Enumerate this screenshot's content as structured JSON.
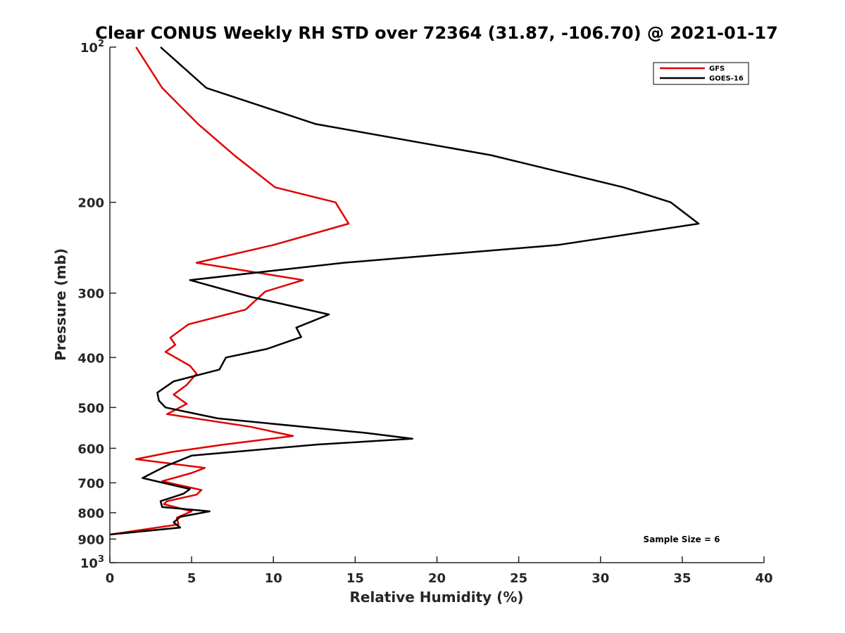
{
  "chart_data": {
    "type": "line",
    "title": "Clear CONUS Weekly RH STD over 72364 (31.87, -106.70) @ 2021-01-17",
    "xlabel": "Relative Humidity (%)",
    "ylabel": "Pressure (mb)",
    "xlim": [
      0,
      40
    ],
    "ylim": [
      100,
      1000
    ],
    "y_scale": "log",
    "y_reversed": true,
    "x_ticks": [
      0,
      5,
      10,
      15,
      20,
      25,
      30,
      35,
      40
    ],
    "x_tick_labels": [
      "0",
      "5",
      "10",
      "15",
      "20",
      "25",
      "30",
      "35",
      "40"
    ],
    "y_ticks": [
      100,
      200,
      300,
      400,
      500,
      600,
      700,
      800,
      900,
      1000
    ],
    "y_tick_labels": [
      {
        "base": "10",
        "exp": "2"
      },
      {
        "base": "200",
        "exp": ""
      },
      {
        "base": "300",
        "exp": ""
      },
      {
        "base": "400",
        "exp": ""
      },
      {
        "base": "500",
        "exp": ""
      },
      {
        "base": "600",
        "exp": ""
      },
      {
        "base": "700",
        "exp": ""
      },
      {
        "base": "800",
        "exp": ""
      },
      {
        "base": "900",
        "exp": ""
      },
      {
        "base": "10",
        "exp": "3"
      }
    ],
    "grid": false,
    "legend_position": "top-right",
    "annotation": "Sample Size = 6",
    "series": [
      {
        "name": "GFS",
        "color": "#e00000",
        "points": [
          [
            1.6,
            100
          ],
          [
            3.2,
            120
          ],
          [
            5.4,
            141
          ],
          [
            7.6,
            162
          ],
          [
            10.1,
            187
          ],
          [
            13.8,
            200
          ],
          [
            14.6,
            220
          ],
          [
            10.0,
            242
          ],
          [
            5.3,
            262
          ],
          [
            11.8,
            283
          ],
          [
            9.5,
            298
          ],
          [
            8.3,
            323
          ],
          [
            4.8,
            345
          ],
          [
            3.7,
            366
          ],
          [
            4.0,
            378
          ],
          [
            3.4,
            390
          ],
          [
            4.9,
            415
          ],
          [
            5.3,
            430
          ],
          [
            4.7,
            452
          ],
          [
            3.9,
            472
          ],
          [
            4.7,
            492
          ],
          [
            3.5,
            515
          ],
          [
            8.6,
            545
          ],
          [
            11.2,
            568
          ],
          [
            7.0,
            590
          ],
          [
            3.8,
            610
          ],
          [
            1.6,
            630
          ],
          [
            5.8,
            655
          ],
          [
            5.0,
            670
          ],
          [
            3.2,
            695
          ],
          [
            5.6,
            723
          ],
          [
            5.3,
            738
          ],
          [
            3.5,
            760
          ],
          [
            3.3,
            770
          ],
          [
            5.0,
            795
          ],
          [
            4.1,
            818
          ],
          [
            4.2,
            843
          ],
          [
            0,
            882
          ]
        ]
      },
      {
        "name": "GOES-16",
        "color": "#000000",
        "points": [
          [
            3.1,
            100
          ],
          [
            5.9,
            120
          ],
          [
            12.6,
            141
          ],
          [
            23.3,
            162
          ],
          [
            31.4,
            187
          ],
          [
            34.3,
            200
          ],
          [
            36.0,
            220
          ],
          [
            27.4,
            242
          ],
          [
            14.3,
            262
          ],
          [
            4.9,
            283
          ],
          [
            8.6,
            305
          ],
          [
            13.4,
            330
          ],
          [
            11.4,
            350
          ],
          [
            11.7,
            365
          ],
          [
            9.6,
            385
          ],
          [
            7.1,
            400
          ],
          [
            6.7,
            422
          ],
          [
            3.9,
            445
          ],
          [
            2.9,
            468
          ],
          [
            3.0,
            485
          ],
          [
            3.4,
            500
          ],
          [
            6.6,
            525
          ],
          [
            15.6,
            560
          ],
          [
            18.5,
            575
          ],
          [
            12.7,
            590
          ],
          [
            5.0,
            620
          ],
          [
            3.4,
            650
          ],
          [
            2.0,
            685
          ],
          [
            4.9,
            720
          ],
          [
            4.5,
            735
          ],
          [
            3.1,
            760
          ],
          [
            3.2,
            780
          ],
          [
            6.1,
            795
          ],
          [
            4.3,
            815
          ],
          [
            3.9,
            835
          ],
          [
            4.1,
            845
          ],
          [
            4.3,
            855
          ],
          [
            0,
            882
          ]
        ]
      }
    ]
  }
}
